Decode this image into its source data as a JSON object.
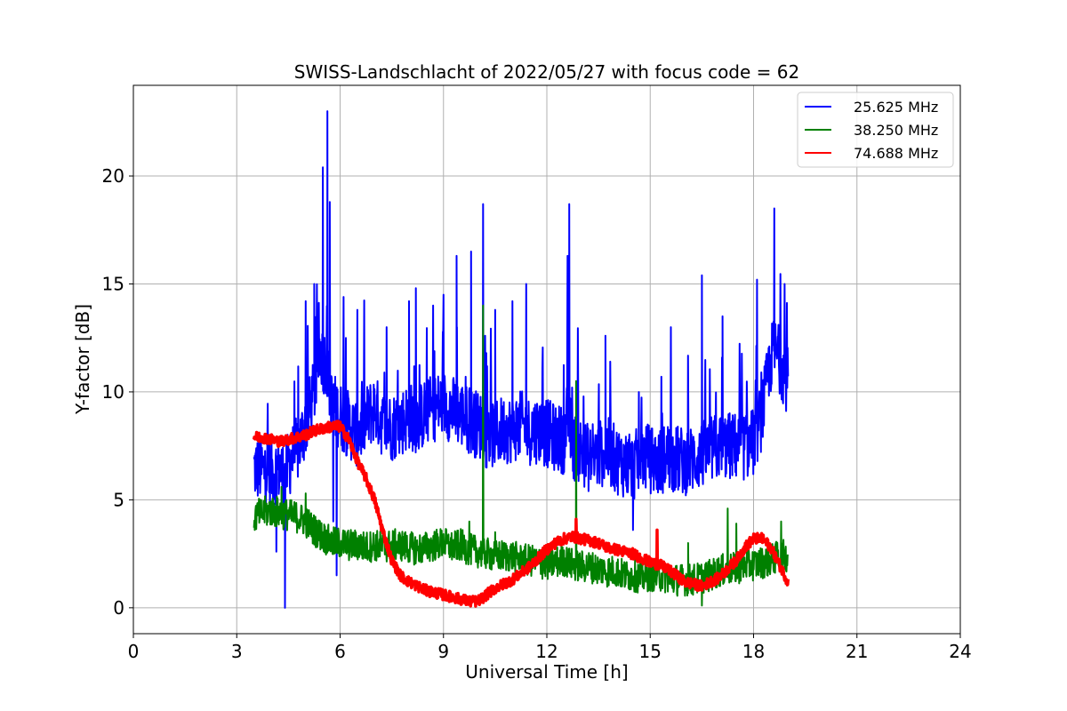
{
  "chart_data": {
    "type": "line",
    "title": "SWISS-Landschlacht of 2022/05/27 with focus code = 62",
    "xlabel": "Universal Time [h]",
    "ylabel": "Y-factor [dB]",
    "xlim": [
      0,
      24
    ],
    "ylim": [
      -1.2,
      24.2
    ],
    "xticks": [
      0,
      3,
      6,
      9,
      12,
      15,
      18,
      21,
      24
    ],
    "yticks": [
      0,
      5,
      10,
      15,
      20
    ],
    "grid": true,
    "legend_position": "top-right",
    "series": [
      {
        "name": "25.625 MHz",
        "color": "#0000ff",
        "x": [
          3.5,
          3.75,
          4.0,
          4.25,
          4.4,
          4.5,
          4.75,
          5.0,
          5.25,
          5.4,
          5.5,
          5.6,
          5.75,
          6.0,
          6.25,
          6.5,
          6.75,
          7.0,
          7.25,
          7.5,
          7.75,
          8.0,
          8.25,
          8.5,
          8.75,
          9.0,
          9.25,
          9.5,
          9.75,
          10.0,
          10.15,
          10.25,
          10.5,
          10.75,
          11.0,
          11.25,
          11.5,
          11.75,
          12.0,
          12.25,
          12.5,
          12.6,
          12.75,
          13.0,
          13.25,
          13.5,
          13.75,
          14.0,
          14.25,
          14.5,
          14.75,
          15.0,
          15.25,
          15.5,
          15.75,
          16.0,
          16.25,
          16.5,
          16.75,
          17.0,
          17.25,
          17.5,
          17.75,
          18.0,
          18.25,
          18.5,
          18.6,
          18.75,
          19.0
        ],
        "y": [
          6.0,
          5.9,
          5.8,
          6.0,
          5.5,
          6.2,
          6.8,
          8.0,
          9.5,
          11.5,
          11.0,
          11.0,
          9.0,
          8.4,
          8.0,
          7.6,
          8.2,
          8.8,
          8.0,
          7.9,
          8.1,
          8.4,
          8.2,
          8.6,
          8.8,
          9.0,
          8.7,
          8.5,
          8.2,
          8.0,
          7.9,
          7.5,
          7.6,
          7.8,
          7.8,
          8.0,
          7.7,
          7.8,
          7.6,
          7.4,
          7.3,
          8.5,
          7.0,
          6.8,
          6.4,
          6.6,
          6.8,
          6.4,
          6.2,
          6.0,
          6.6,
          6.4,
          6.2,
          6.6,
          6.4,
          6.3,
          6.4,
          6.6,
          6.8,
          7.0,
          7.0,
          7.0,
          7.0,
          7.2,
          8.5,
          11.0,
          11.5,
          11.0,
          10.0
        ],
        "peaks": [
          [
            5.0,
            14.2
          ],
          [
            5.25,
            15.0
          ],
          [
            5.5,
            20.4
          ],
          [
            5.63,
            23.0
          ],
          [
            5.7,
            18.8
          ],
          [
            6.1,
            14.4
          ],
          [
            6.5,
            13.8
          ],
          [
            7.35,
            13.0
          ],
          [
            8.0,
            14.2
          ],
          [
            8.2,
            14.8
          ],
          [
            8.7,
            14.0
          ],
          [
            9.0,
            14.5
          ],
          [
            9.38,
            16.3
          ],
          [
            9.8,
            16.5
          ],
          [
            10.15,
            18.7
          ],
          [
            10.5,
            13.8
          ],
          [
            11.0,
            14.2
          ],
          [
            11.4,
            15.0
          ],
          [
            12.6,
            16.3
          ],
          [
            12.65,
            18.7
          ],
          [
            13.7,
            12.6
          ],
          [
            15.6,
            13.0
          ],
          [
            16.5,
            15.4
          ],
          [
            17.1,
            13.5
          ],
          [
            18.1,
            15.2
          ],
          [
            18.6,
            18.5
          ],
          [
            18.9,
            15.0
          ]
        ],
        "dips": [
          [
            4.15,
            2.6
          ],
          [
            4.4,
            0.0
          ],
          [
            5.8,
            4.0
          ],
          [
            5.9,
            1.5
          ],
          [
            14.5,
            3.6
          ]
        ]
      },
      {
        "name": "38.250 MHz",
        "color": "#008000",
        "x": [
          3.5,
          3.75,
          4.0,
          4.25,
          4.5,
          4.75,
          5.0,
          5.25,
          5.5,
          5.75,
          6.0,
          6.25,
          6.5,
          6.75,
          7.0,
          7.25,
          7.5,
          7.75,
          8.0,
          8.25,
          8.5,
          8.75,
          9.0,
          9.25,
          9.5,
          9.75,
          10.0,
          10.25,
          10.5,
          10.75,
          11.0,
          11.25,
          11.5,
          11.75,
          12.0,
          12.25,
          12.5,
          12.75,
          13.0,
          13.25,
          13.5,
          13.75,
          14.0,
          14.25,
          14.5,
          14.75,
          15.0,
          15.25,
          15.5,
          15.75,
          16.0,
          16.25,
          16.5,
          16.75,
          17.0,
          17.25,
          17.5,
          17.75,
          18.0,
          18.25,
          18.5,
          18.75,
          19.0
        ],
        "y": [
          4.2,
          4.4,
          4.5,
          4.4,
          4.3,
          4.2,
          4.0,
          3.6,
          3.3,
          3.0,
          3.0,
          2.9,
          2.9,
          2.8,
          2.9,
          2.8,
          2.9,
          2.9,
          2.8,
          2.7,
          2.8,
          2.9,
          3.0,
          2.8,
          2.9,
          2.7,
          2.6,
          2.5,
          2.4,
          2.4,
          2.4,
          2.2,
          2.2,
          2.1,
          2.0,
          2.1,
          2.2,
          2.0,
          1.9,
          1.9,
          1.8,
          1.7,
          1.7,
          1.5,
          1.5,
          1.4,
          1.5,
          1.5,
          1.4,
          1.3,
          1.3,
          1.3,
          1.4,
          1.5,
          1.7,
          1.8,
          1.8,
          2.0,
          2.0,
          2.1,
          2.2,
          2.4,
          2.4
        ],
        "peaks": [
          [
            4.3,
            5.6
          ],
          [
            5.0,
            5.3
          ],
          [
            9.75,
            4.0
          ],
          [
            10.15,
            14.0
          ],
          [
            10.5,
            3.5
          ],
          [
            12.85,
            10.5
          ],
          [
            16.1,
            3.0
          ],
          [
            17.25,
            4.6
          ],
          [
            17.5,
            3.9
          ],
          [
            18.8,
            4.0
          ]
        ],
        "dips": [
          [
            16.5,
            0.1
          ]
        ]
      },
      {
        "name": "74.688 MHz",
        "color": "#ff0000",
        "x": [
          3.5,
          3.75,
          4.0,
          4.25,
          4.5,
          4.75,
          5.0,
          5.25,
          5.5,
          5.75,
          6.0,
          6.25,
          6.5,
          6.75,
          7.0,
          7.25,
          7.5,
          7.75,
          8.0,
          8.25,
          8.5,
          8.75,
          9.0,
          9.25,
          9.5,
          9.75,
          10.0,
          10.25,
          10.5,
          10.75,
          11.0,
          11.25,
          11.5,
          11.75,
          12.0,
          12.25,
          12.5,
          12.75,
          13.0,
          13.25,
          13.5,
          13.75,
          14.0,
          14.25,
          14.5,
          14.75,
          15.0,
          15.25,
          15.5,
          15.75,
          16.0,
          16.25,
          16.5,
          16.75,
          17.0,
          17.25,
          17.5,
          17.75,
          18.0,
          18.25,
          18.5,
          18.75,
          19.0
        ],
        "y": [
          7.9,
          7.9,
          7.8,
          7.7,
          7.8,
          7.9,
          8.0,
          8.2,
          8.3,
          8.4,
          8.4,
          7.8,
          6.8,
          6.0,
          5.0,
          3.5,
          2.2,
          1.5,
          1.2,
          1.0,
          0.8,
          0.7,
          0.6,
          0.5,
          0.4,
          0.3,
          0.3,
          0.6,
          0.9,
          1.1,
          1.3,
          1.6,
          1.9,
          2.3,
          2.7,
          3.0,
          3.2,
          3.3,
          3.2,
          3.1,
          3.0,
          2.8,
          2.7,
          2.6,
          2.5,
          2.3,
          2.1,
          2.0,
          1.8,
          1.5,
          1.2,
          1.1,
          1.0,
          1.2,
          1.4,
          1.8,
          2.2,
          2.8,
          3.2,
          3.2,
          2.8,
          2.0,
          1.2
        ],
        "peaks": [
          [
            12.85,
            4.1
          ],
          [
            15.2,
            3.6
          ]
        ],
        "dips": []
      }
    ]
  }
}
